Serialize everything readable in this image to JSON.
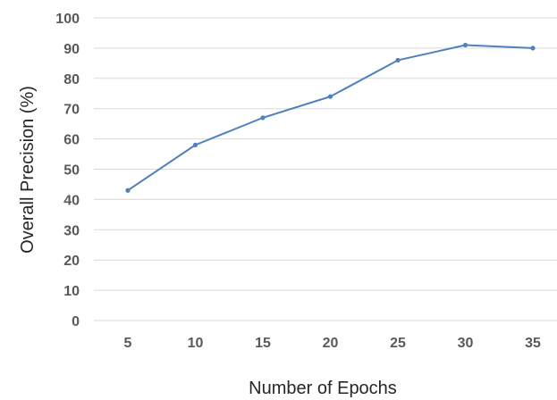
{
  "chart_data": {
    "type": "line",
    "x": [
      5,
      10,
      15,
      20,
      25,
      30,
      35
    ],
    "series": [
      {
        "values": [
          43,
          58,
          67,
          74,
          86,
          91,
          90
        ]
      }
    ],
    "xlabel": "Number of Epochs",
    "ylabel": "Overall Precision (%)",
    "ylim": [
      0,
      100
    ],
    "yticks": [
      0,
      10,
      20,
      30,
      40,
      50,
      60,
      70,
      80,
      90,
      100
    ],
    "grid": true,
    "legend": "none",
    "line_color": "#4f81bd"
  }
}
